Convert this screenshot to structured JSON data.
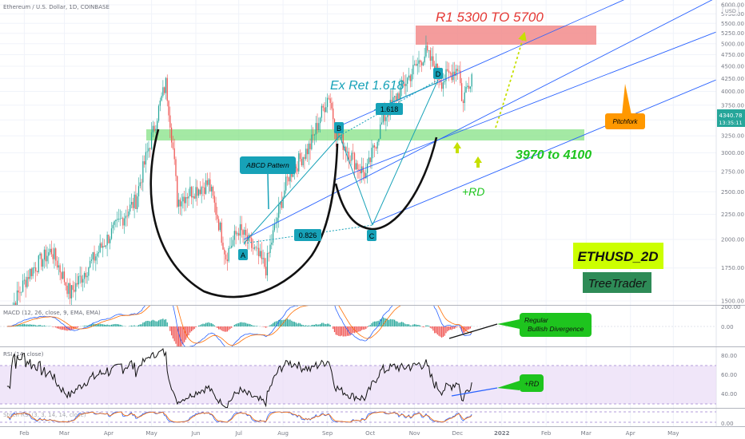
{
  "header": {
    "symbol_title": "Ethereum / U.S. Dollar, 1D, COINBASE",
    "currency": "USD"
  },
  "price_panel": {
    "last_price": "4340.78",
    "countdown": "13:35:11",
    "y_ticks": [
      "6000.00",
      "5750.00",
      "5500.00",
      "5250.00",
      "5000.00",
      "4750.00",
      "4500.00",
      "4250.00",
      "4000.00",
      "3750.00",
      "3500.00",
      "3250.00",
      "3000.00",
      "2750.00",
      "2500.00",
      "2250.00",
      "2000.00",
      "1750.00",
      "1500.00"
    ]
  },
  "time_axis": {
    "labels": [
      "Feb",
      "Mar",
      "Apr",
      "May",
      "Jun",
      "Jul",
      "Aug",
      "Sep",
      "Oct",
      "Nov",
      "Dec",
      "2022",
      "Feb",
      "Mar",
      "Apr",
      "May"
    ]
  },
  "annotations": {
    "r1_target": "R1 5300 TO 5700",
    "ex_ret": "Ex Ret 1.618",
    "ratio_1618": "1.618",
    "ratio_0826": "0.826",
    "abcd_pattern": "ABCD Pattern",
    "support_zone": "3970 to 4100",
    "plus_rd": "+RD",
    "pitchfork": "Pitchfork",
    "ethusd": "ETHUSD_2D",
    "treetrader": "TreeTrader",
    "point_a": "A",
    "point_b": "B",
    "point_c": "C",
    "point_d": "D"
  },
  "macd_panel": {
    "title": "MACD (12, 26, close, 9, EMA, EMA)",
    "y_ticks": [
      "200.00",
      "0.00"
    ],
    "note_line1": "Regular",
    "note_line2": "Bullish Divergence"
  },
  "rsi_panel": {
    "title": "RSI (14, close)",
    "y_ticks": [
      "80.00",
      "60.00",
      "40.00"
    ],
    "note": "+RD"
  },
  "stoch_panel": {
    "title": "Stoch RSI (3, 3, 14, 14, close)",
    "y_ticks": [
      "0.00"
    ]
  },
  "colors": {
    "candle_up": "#26a69a",
    "candle_down": "#ef5350",
    "pitchfork_lines": "#2962ff",
    "abcd_lines": "#17a2b8",
    "support_zone": "#7ee07e",
    "target_zone": "#f28b8b",
    "annotation_cyan": "#17a2b8",
    "annotation_green": "#1ec41e",
    "annotation_red": "#e53935",
    "ethusd_bg": "#ccff00",
    "treetrader_bg": "#2e8b57",
    "pitchfork_label_bg": "#ff9800"
  },
  "chart_data": {
    "type": "candlestick",
    "symbol": "ETHUSD",
    "interval": "1D",
    "x_range": [
      "2021-01-15",
      "2022-05-31"
    ],
    "y_range": [
      1400,
      6050
    ],
    "y_scale": "log",
    "close_path": [
      [
        "2021-01-20",
        1380
      ],
      [
        "2021-02-05",
        1720
      ],
      [
        "2021-02-20",
        1900
      ],
      [
        "2021-03-05",
        1550
      ],
      [
        "2021-03-20",
        1800
      ],
      [
        "2021-04-05",
        2100
      ],
      [
        "2021-04-20",
        2400
      ],
      [
        "2021-05-02",
        3300
      ],
      [
        "2021-05-11",
        4150
      ],
      [
        "2021-05-19",
        2400
      ],
      [
        "2021-05-28",
        2500
      ],
      [
        "2021-06-10",
        2600
      ],
      [
        "2021-06-22",
        1850
      ],
      [
        "2021-07-01",
        2100
      ],
      [
        "2021-07-20",
        1750
      ],
      [
        "2021-08-05",
        2700
      ],
      [
        "2021-08-20",
        3100
      ],
      [
        "2021-09-02",
        3950
      ],
      [
        "2021-09-07",
        3300
      ],
      [
        "2021-09-21",
        2850
      ],
      [
        "2021-09-28",
        2700
      ],
      [
        "2021-10-10",
        3500
      ],
      [
        "2021-10-26",
        4200
      ],
      [
        "2021-11-09",
        4800
      ],
      [
        "2021-11-20",
        4200
      ],
      [
        "2021-12-02",
        4500
      ],
      [
        "2021-12-04",
        3800
      ],
      [
        "2021-12-11",
        4340
      ]
    ],
    "support_zone": [
      3970,
      4100
    ],
    "target_zone": [
      5300,
      5700
    ],
    "abcd_points": {
      "A": [
        "2021-07-20",
        2300
      ],
      "B": [
        "2021-09-02",
        3970
      ],
      "C": [
        "2021-09-28",
        2700
      ],
      "D": [
        "2021-11-09",
        4850
      ]
    },
    "ratios": {
      "bc_retracement": 0.826,
      "extension": 1.618
    }
  }
}
